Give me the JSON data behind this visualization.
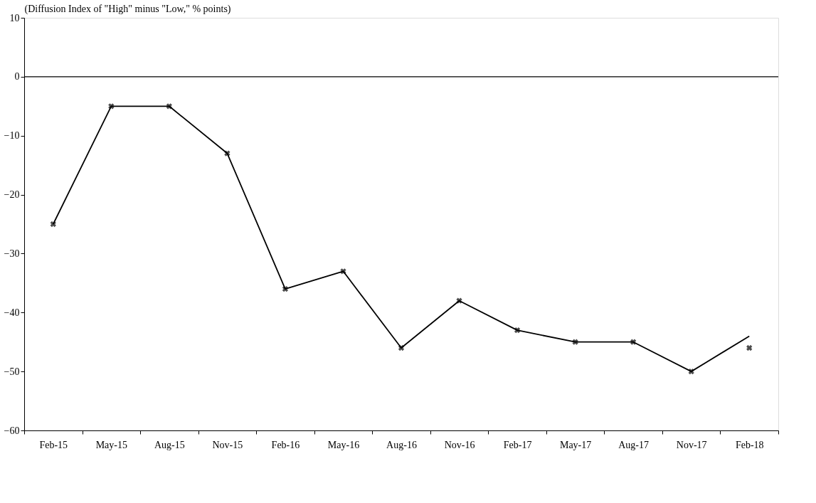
{
  "chart_data": {
    "type": "line",
    "ylabel": "(Diffusion Index of \"High\" minus \"Low,\" % points)",
    "categories": [
      "Feb-15",
      "May-15",
      "Aug-15",
      "Nov-15",
      "Feb-16",
      "May-16",
      "Aug-16",
      "Nov-16",
      "Feb-17",
      "May-17",
      "Aug-17",
      "Nov-17",
      "Feb-18"
    ],
    "series": [
      {
        "color": "#000000",
        "marker": "none",
        "values": [
          -25,
          -5,
          -5,
          -13,
          -36,
          -33,
          -46,
          -38,
          -43,
          -45,
          -45,
          -50,
          -44
        ]
      },
      {
        "type": "scatter",
        "color": "#000000",
        "marker": "cross",
        "values": [
          -25,
          -5,
          -5,
          -13,
          -36,
          -33,
          -46,
          -38,
          -43,
          -45,
          -45,
          -50,
          -46
        ]
      }
    ],
    "ylim": [
      -60,
      10
    ],
    "yticks": [
      -60,
      -50,
      -40,
      -30,
      -20,
      -10,
      0,
      10
    ],
    "grid": false,
    "ref_lines": [
      {
        "axis": "y",
        "value": 0,
        "color": "#000000"
      }
    ]
  }
}
